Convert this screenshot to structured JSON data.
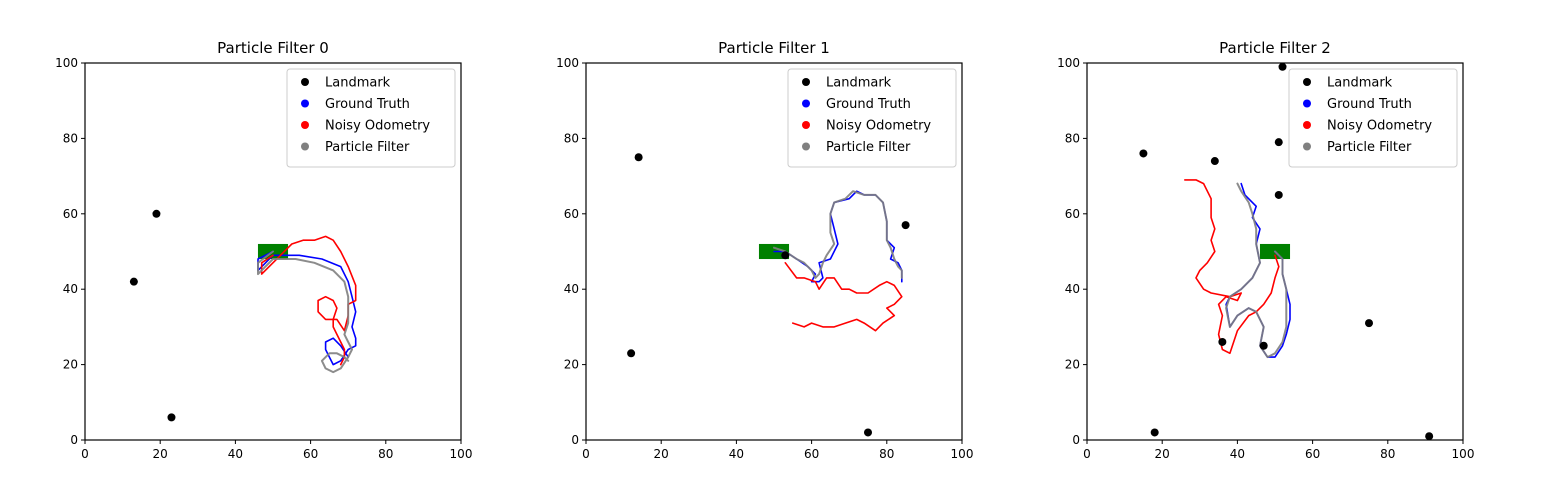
{
  "chart_data": [
    {
      "type": "line",
      "title": "Particle Filter 0",
      "xlim": [
        0,
        100
      ],
      "ylim": [
        0,
        100
      ],
      "xticks": [
        "0",
        "20",
        "40",
        "60",
        "80",
        "100"
      ],
      "yticks": [
        "0",
        "20",
        "40",
        "60",
        "80",
        "100"
      ],
      "grid": false,
      "legend_position": "top-right",
      "legend": [
        "Landmark",
        "Ground Truth",
        "Noisy Odometry",
        "Particle Filter"
      ],
      "colors": {
        "Landmark": "#000000",
        "Ground Truth": "#0000ff",
        "Noisy Odometry": "#ff0000",
        "Particle Filter": "#808080",
        "robot": "#008000"
      },
      "robot_box": {
        "x": [
          46,
          54
        ],
        "y": [
          48,
          52
        ]
      },
      "landmarks": [
        [
          19,
          60
        ],
        [
          13,
          42
        ],
        [
          23,
          6
        ]
      ],
      "series": [
        {
          "name": "Ground Truth",
          "x": [
            50,
            46,
            46,
            50,
            57,
            63,
            68,
            70,
            71,
            72,
            71,
            72,
            72,
            70,
            68,
            66,
            65,
            64,
            64,
            66,
            68,
            70
          ],
          "y": [
            50,
            48,
            45,
            49,
            49,
            48,
            46,
            42,
            38,
            34,
            30,
            27,
            25,
            24,
            21,
            20,
            22,
            24,
            26,
            27,
            25,
            22
          ]
        },
        {
          "name": "Noisy Odometry",
          "x": [
            50,
            47,
            47,
            52,
            55,
            58,
            61,
            64,
            66,
            68,
            70,
            72,
            72,
            70,
            70,
            69,
            67,
            64,
            62,
            62,
            64,
            66,
            67,
            66,
            66,
            67,
            68,
            69,
            69,
            68
          ],
          "y": [
            49,
            47,
            44,
            49,
            52,
            53,
            53,
            54,
            53,
            50,
            46,
            41,
            37,
            36,
            33,
            29,
            32,
            32,
            34,
            37,
            38,
            37,
            35,
            32,
            30,
            28,
            26,
            24,
            22,
            20
          ]
        },
        {
          "name": "Particle Filter",
          "x": [
            50,
            46,
            46,
            50,
            56,
            61,
            66,
            69,
            70,
            70,
            70,
            69,
            70,
            71,
            70,
            68,
            66,
            64,
            63,
            65,
            67,
            69,
            70
          ],
          "y": [
            50,
            47,
            44,
            48,
            48,
            47,
            45,
            42,
            38,
            34,
            31,
            28,
            26,
            24,
            22,
            19,
            18,
            19,
            21,
            23,
            23,
            22,
            21
          ]
        }
      ]
    },
    {
      "type": "line",
      "title": "Particle Filter 1",
      "xlim": [
        0,
        100
      ],
      "ylim": [
        0,
        100
      ],
      "xticks": [
        "0",
        "20",
        "40",
        "60",
        "80",
        "100"
      ],
      "yticks": [
        "0",
        "20",
        "40",
        "60",
        "80",
        "100"
      ],
      "grid": false,
      "legend_position": "top-right",
      "legend": [
        "Landmark",
        "Ground Truth",
        "Noisy Odometry",
        "Particle Filter"
      ],
      "colors": {
        "Landmark": "#000000",
        "Ground Truth": "#0000ff",
        "Noisy Odometry": "#ff0000",
        "Particle Filter": "#808080",
        "robot": "#008000"
      },
      "robot_box": {
        "x": [
          46,
          54
        ],
        "y": [
          48,
          52
        ]
      },
      "landmarks": [
        [
          14,
          75
        ],
        [
          12,
          23
        ],
        [
          53,
          49
        ],
        [
          85,
          57
        ],
        [
          75,
          2
        ]
      ],
      "series": [
        {
          "name": "Ground Truth",
          "x": [
            50,
            53,
            56,
            59,
            61,
            60,
            62,
            63,
            62,
            65,
            67,
            66,
            65,
            66,
            70,
            72,
            74,
            77,
            79,
            80,
            80,
            82,
            81,
            83,
            84,
            84
          ],
          "y": [
            50,
            50,
            48,
            46,
            44,
            42,
            42,
            43,
            47,
            48,
            52,
            56,
            60,
            63,
            64,
            66,
            65,
            65,
            63,
            58,
            53,
            51,
            48,
            47,
            45,
            42
          ]
        },
        {
          "name": "Noisy Odometry",
          "x": [
            53,
            56,
            58,
            61,
            62,
            64,
            66,
            68,
            70,
            72,
            75,
            78,
            80,
            82,
            84,
            82,
            80,
            82,
            79,
            77,
            74,
            72,
            69,
            66,
            63,
            60,
            58,
            55
          ],
          "y": [
            47,
            43,
            43,
            42,
            40,
            43,
            43,
            40,
            40,
            39,
            39,
            41,
            42,
            41,
            38,
            36,
            35,
            33,
            31,
            29,
            31,
            32,
            31,
            30,
            30,
            31,
            30,
            31
          ]
        },
        {
          "name": "Particle Filter",
          "x": [
            50,
            53,
            56,
            58,
            60,
            61,
            62,
            63,
            64,
            66,
            65,
            65,
            66,
            69,
            71,
            74,
            77,
            79,
            80,
            80,
            81,
            82,
            83,
            84,
            84
          ],
          "y": [
            51,
            50,
            48,
            47,
            45,
            43,
            44,
            47,
            49,
            52,
            55,
            60,
            63,
            64,
            66,
            65,
            65,
            63,
            58,
            53,
            51,
            48,
            46,
            45,
            43
          ]
        }
      ]
    },
    {
      "type": "line",
      "title": "Particle Filter 2",
      "xlim": [
        0,
        100
      ],
      "ylim": [
        0,
        100
      ],
      "xticks": [
        "0",
        "20",
        "40",
        "60",
        "80",
        "100"
      ],
      "yticks": [
        "0",
        "20",
        "40",
        "60",
        "80",
        "100"
      ],
      "grid": false,
      "legend_position": "top-right",
      "legend": [
        "Landmark",
        "Ground Truth",
        "Noisy Odometry",
        "Particle Filter"
      ],
      "colors": {
        "Landmark": "#000000",
        "Ground Truth": "#0000ff",
        "Noisy Odometry": "#ff0000",
        "Particle Filter": "#808080",
        "robot": "#008000"
      },
      "robot_box": {
        "x": [
          46,
          54
        ],
        "y": [
          48,
          52
        ]
      },
      "landmarks": [
        [
          15,
          76
        ],
        [
          34,
          74
        ],
        [
          52,
          99
        ],
        [
          51,
          79
        ],
        [
          51,
          65
        ],
        [
          75,
          31
        ],
        [
          36,
          26
        ],
        [
          47,
          25
        ],
        [
          18,
          2
        ],
        [
          91,
          1
        ]
      ],
      "series": [
        {
          "name": "Ground Truth",
          "x": [
            50,
            52,
            52,
            53,
            54,
            54,
            53,
            52,
            50,
            48,
            46,
            47,
            45,
            43,
            40,
            38,
            37,
            38,
            41,
            44,
            46,
            45,
            46,
            44,
            45,
            42,
            41
          ],
          "y": [
            50,
            48,
            44,
            40,
            36,
            32,
            28,
            25,
            22,
            22,
            25,
            30,
            34,
            35,
            33,
            30,
            36,
            38,
            40,
            43,
            47,
            52,
            56,
            59,
            62,
            65,
            68
          ]
        },
        {
          "name": "Noisy Odometry",
          "x": [
            50,
            51,
            50,
            49,
            47,
            45,
            43,
            40,
            38,
            36,
            35,
            36,
            35,
            37,
            40,
            41,
            38,
            33,
            31,
            29,
            30,
            32,
            34,
            33,
            34,
            33,
            33,
            31,
            29,
            26
          ],
          "y": [
            49,
            46,
            43,
            39,
            36,
            34,
            33,
            29,
            23,
            24,
            28,
            33,
            36,
            38,
            37,
            39,
            38,
            39,
            40,
            43,
            45,
            47,
            50,
            53,
            56,
            59,
            64,
            68,
            69,
            69
          ]
        },
        {
          "name": "Particle Filter",
          "x": [
            50,
            52,
            52,
            53,
            53,
            53,
            52,
            50,
            48,
            46,
            47,
            45,
            43,
            40,
            38,
            37,
            38,
            41,
            44,
            46,
            45,
            45,
            44,
            43,
            41,
            40
          ],
          "y": [
            50,
            48,
            44,
            40,
            35,
            30,
            26,
            23,
            22,
            25,
            30,
            34,
            35,
            33,
            30,
            35,
            38,
            40,
            43,
            47,
            52,
            56,
            60,
            63,
            66,
            68
          ]
        }
      ]
    }
  ]
}
